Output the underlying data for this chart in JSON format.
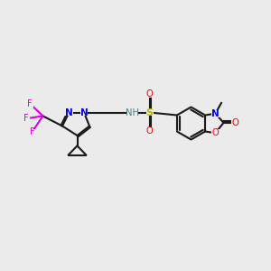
{
  "bg_color": "#ebebeb",
  "bond_color": "#1a1a1a",
  "N_color": "#0000ee",
  "O_color": "#ee0000",
  "F_color": "#dd00dd",
  "S_color": "#b8b800",
  "H_color": "#4a8080",
  "bond_lw": 1.5,
  "dbl_sep": 0.055,
  "figsize": [
    3.0,
    3.0
  ],
  "dpi": 100,
  "xlim": [
    0,
    10
  ],
  "ylim": [
    0,
    10
  ]
}
